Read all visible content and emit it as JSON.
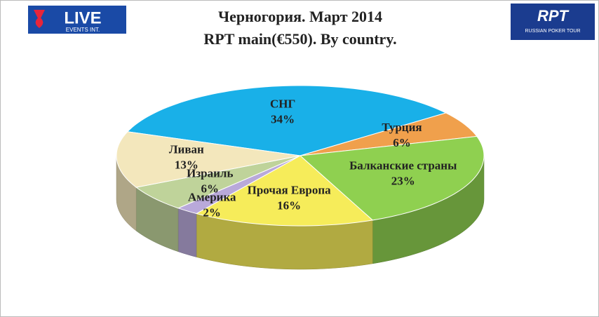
{
  "header": {
    "left_logo": "LIVE",
    "left_logo_sub": "EVENTS INT.",
    "right_logo": "RPT",
    "right_logo_sub": "RUSSIAN POKER TOUR"
  },
  "chart_data": {
    "type": "pie",
    "title": "Черногория. Март 2014",
    "subtitle": "RPT main(€550). By country.",
    "categories": [
      "СНГ",
      "Турция",
      "Балканские страны",
      "Прочая Европа",
      "Америка",
      "Израиль",
      "Ливан"
    ],
    "values": [
      34,
      6,
      23,
      16,
      2,
      6,
      13
    ],
    "value_labels": [
      "34%",
      "6%",
      "23%",
      "16%",
      "2%",
      "6%",
      "13%"
    ],
    "colors": [
      "#19b0e8",
      "#f0a04c",
      "#8fd050",
      "#f6ec5a",
      "#b9a9da",
      "#bfd39a",
      "#f3e7bc"
    ]
  }
}
